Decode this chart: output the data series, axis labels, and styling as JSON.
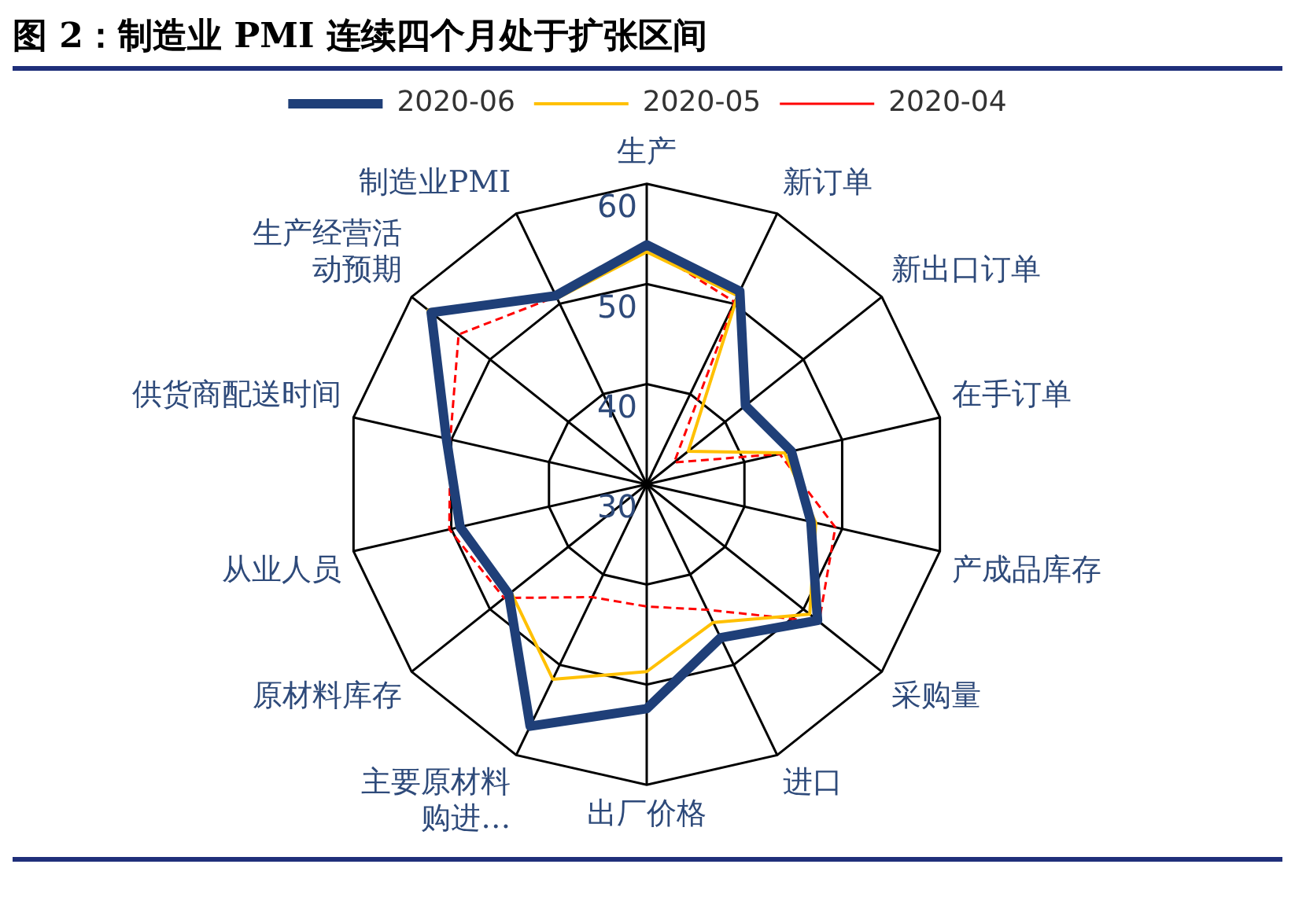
{
  "chart_data": {
    "type": "radar",
    "title": "图 2：制造业 PMI 连续四个月处于扩张区间",
    "categories": [
      "生产",
      "新订单",
      "新出口订单",
      "在手订单",
      "产成品库存",
      "采购量",
      "进口",
      "出厂价格",
      "主要原材料购进…",
      "原材料库存",
      "从业人员",
      "供货商配送时间",
      "生产经营活动预期",
      "制造业PMI"
    ],
    "series": [
      {
        "name": "2020-06",
        "color": "#1f3f78",
        "values": [
          53.9,
          51.4,
          42.6,
          44.8,
          46.8,
          51.8,
          47.0,
          52.4,
          56.8,
          47.6,
          49.1,
          50.5,
          57.5,
          50.9
        ]
      },
      {
        "name": "2020-05",
        "color": "#ffc000",
        "values": [
          53.2,
          50.9,
          35.3,
          44.1,
          47.3,
          50.8,
          45.3,
          48.7,
          51.6,
          47.3,
          49.4,
          50.5,
          57.9,
          50.6
        ]
      },
      {
        "name": "2020-04",
        "color": "#ff0000",
        "line_style": "dashed",
        "values": [
          53.7,
          50.2,
          33.5,
          43.6,
          49.3,
          52.0,
          43.9,
          42.2,
          42.5,
          48.2,
          50.2,
          50.1,
          54.0,
          50.8
        ]
      }
    ],
    "ylim": [
      30,
      60
    ],
    "yticks": [
      30,
      40,
      50,
      60
    ],
    "legend": "top",
    "grid": true,
    "marker": "none"
  }
}
